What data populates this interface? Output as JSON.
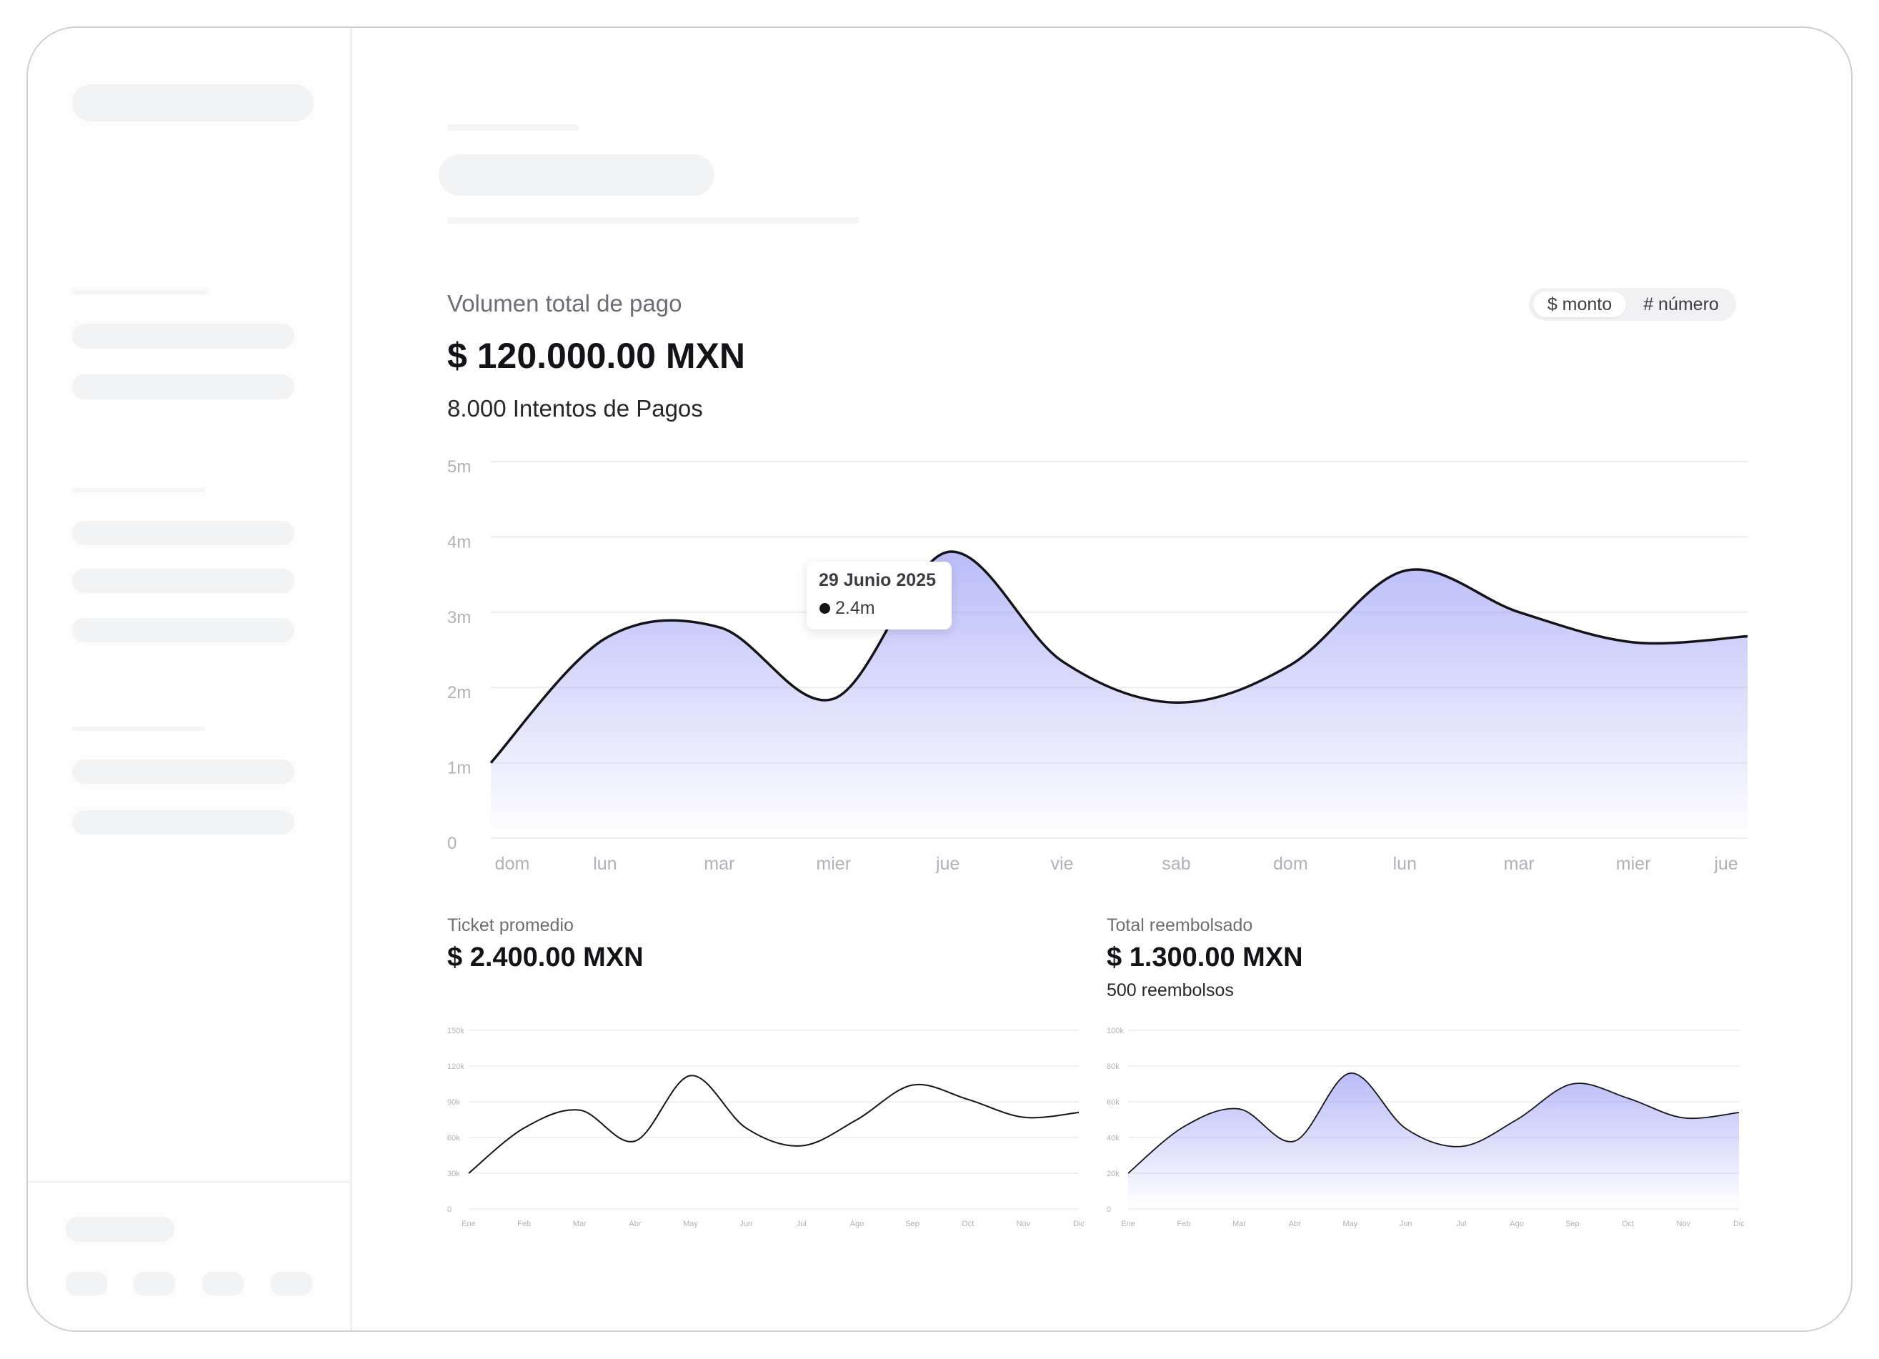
{
  "toggle": {
    "amount_label": "$ monto",
    "count_label": "# número",
    "selected": "$ monto"
  },
  "main_metric": {
    "label": "Volumen total de pago",
    "value": "$ 120.000.00 MXN",
    "sub": "8.000 Intentos de Pagos"
  },
  "main_chart": {
    "type": "area",
    "x": [
      "dom",
      "lun",
      "mar",
      "mier",
      "jue",
      "vie",
      "sab",
      "dom",
      "lun",
      "mar",
      "mier",
      "jue"
    ],
    "y_ticks": [
      "0",
      "1m",
      "2m",
      "3m",
      "4m",
      "5m"
    ],
    "ylim": [
      0,
      5
    ],
    "series": [
      {
        "values": [
          1.0,
          2.65,
          2.8,
          1.85,
          3.8,
          2.35,
          1.8,
          2.3,
          3.55,
          3.0,
          2.6,
          2.68
        ]
      }
    ],
    "tooltip": {
      "date": "29 Junio 2025",
      "value": "2.4m"
    },
    "fill_color": "#8b8ff5",
    "line_color": "#141418"
  },
  "ticket": {
    "label": "Ticket promedio",
    "value": "$ 2.400.00 MXN",
    "chart": {
      "type": "line",
      "x": [
        "Ene",
        "Feb",
        "Mar",
        "Abr",
        "May",
        "Jun",
        "Jul",
        "Ago",
        "Sep",
        "Oct",
        "Nov",
        "Dic"
      ],
      "y_ticks": [
        "0",
        "30k",
        "60k",
        "90k",
        "120k",
        "150k"
      ],
      "ylim": [
        0,
        150
      ],
      "series": [
        {
          "values": [
            30,
            68,
            83,
            57,
            112,
            68,
            53,
            75,
            104,
            92,
            77,
            81
          ]
        }
      ]
    }
  },
  "refunds": {
    "label": "Total reembolsado",
    "value": "$ 1.300.00 MXN",
    "sub": "500 reembolsos",
    "chart": {
      "type": "area",
      "x": [
        "Ene",
        "Feb",
        "Mar",
        "Abr",
        "May",
        "Jun",
        "Jul",
        "Ago",
        "Sep",
        "Oct",
        "Nov",
        "Dic"
      ],
      "y_ticks": [
        "0",
        "20k",
        "40k",
        "60k",
        "80k",
        "100k"
      ],
      "ylim": [
        0,
        100
      ],
      "series": [
        {
          "values": [
            20,
            46,
            56,
            38,
            76,
            45,
            35,
            50,
            70,
            62,
            51,
            54
          ]
        }
      ]
    }
  }
}
